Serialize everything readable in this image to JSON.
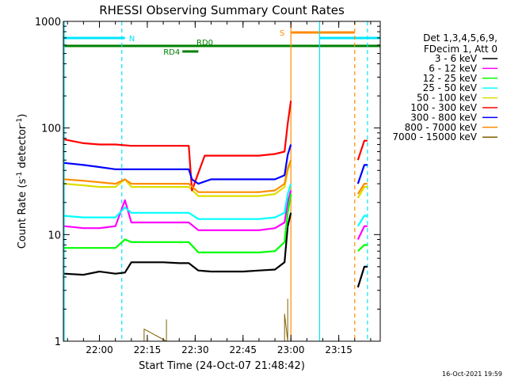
{
  "chart_data": {
    "type": "line",
    "title": "RHESSI Observing Summary Count Rates",
    "xlabel": "Start Time (24-Oct-07 21:48:42)",
    "ylabel": "Count Rate (s-1 detector-1)",
    "ylabel_parts": [
      "Count Rate (s",
      "-1",
      " detector",
      "-1",
      ")"
    ],
    "yscale": "log",
    "xlim": [
      "21:48:42",
      "24-Oct-07 23:28"
    ],
    "ylim": [
      1,
      1000
    ],
    "x_ticks": [
      "22:00",
      "22:15",
      "22:30",
      "22:45",
      "23:00",
      "23:15"
    ],
    "y_ticks": [
      "1",
      "10",
      "100",
      "1000"
    ],
    "legend_header": [
      "Det 1,3,4,5,6,9,",
      "FDecim 1, Att 0"
    ],
    "legend_position": "right",
    "footer_date": "16-Oct-2021 19:59",
    "flags": [
      {
        "label": "N",
        "color": "#00e5ff",
        "x_start": "21:48:42",
        "x_end": "22:08"
      },
      {
        "label": "N",
        "color": "#00e5ff",
        "x_start": "23:09",
        "x_end": "23:28"
      },
      {
        "label": "S",
        "color": "#ff8c00",
        "x_start": "23:00",
        "x_end": "23:20"
      },
      {
        "label": "RD0",
        "color": "#008000",
        "x_start": "21:48:42",
        "x_end": "23:28"
      },
      {
        "label": "RD4",
        "color": "#008000",
        "x_start": "22:26",
        "x_end": "22:31"
      }
    ],
    "vertical_lines": [
      {
        "x": "21:48:42",
        "style": "solid",
        "color": "#00e5ff"
      },
      {
        "x": "22:07",
        "style": "dashed",
        "color": "#00e5ff"
      },
      {
        "x": "23:00",
        "style": "solid",
        "color": "#ff8c00"
      },
      {
        "x": "23:09",
        "style": "solid",
        "color": "#00e5ff"
      },
      {
        "x": "23:20",
        "style": "dashed",
        "color": "#ff8c00"
      },
      {
        "x": "23:24",
        "style": "dashed",
        "color": "#00e5ff"
      }
    ],
    "series": [
      {
        "name": "3 - 6 keV",
        "color": "#000000",
        "x": [
          "21:49",
          "21:55",
          "22:00",
          "22:05",
          "22:08",
          "22:10",
          "22:15",
          "22:20",
          "22:25",
          "22:28",
          "22:31",
          "22:35",
          "22:40",
          "22:45",
          "22:50",
          "22:55",
          "22:58",
          "22:59",
          "23:00",
          "23:21",
          "23:23",
          "23:24"
        ],
        "y": [
          4.3,
          4.2,
          4.5,
          4.3,
          4.4,
          5.5,
          5.5,
          5.5,
          5.4,
          5.4,
          4.6,
          4.5,
          4.5,
          4.5,
          4.6,
          4.7,
          5.5,
          12,
          16,
          3.2,
          5,
          5
        ]
      },
      {
        "name": "6 - 12 keV",
        "color": "#ff00ff",
        "x": [
          "21:49",
          "21:55",
          "22:00",
          "22:05",
          "22:08",
          "22:10",
          "22:15",
          "22:20",
          "22:25",
          "22:28",
          "22:31",
          "22:35",
          "22:40",
          "22:45",
          "22:50",
          "22:55",
          "22:58",
          "22:59",
          "23:00",
          "23:21",
          "23:23",
          "23:24"
        ],
        "y": [
          12,
          11.5,
          11.5,
          12,
          21,
          13,
          13,
          13,
          13,
          13,
          11,
          11,
          11,
          11,
          11,
          11.5,
          13,
          20,
          26,
          9,
          12,
          12
        ]
      },
      {
        "name": "12 - 25 keV",
        "color": "#00ff00",
        "x": [
          "21:49",
          "21:55",
          "22:00",
          "22:05",
          "22:08",
          "22:10",
          "22:15",
          "22:20",
          "22:25",
          "22:28",
          "22:31",
          "22:35",
          "22:40",
          "22:45",
          "22:50",
          "22:55",
          "22:58",
          "22:59",
          "23:00",
          "23:21",
          "23:23",
          "23:24"
        ],
        "y": [
          7.5,
          7.5,
          7.5,
          7.5,
          9,
          8.5,
          8.5,
          8.5,
          8.5,
          8.5,
          6.8,
          6.8,
          6.8,
          6.8,
          6.8,
          7,
          8.5,
          16,
          24,
          7,
          8,
          8
        ]
      },
      {
        "name": "25 - 50 keV",
        "color": "#00ffff",
        "x": [
          "21:49",
          "21:55",
          "22:00",
          "22:05",
          "22:08",
          "22:10",
          "22:15",
          "22:20",
          "22:25",
          "22:28",
          "22:31",
          "22:35",
          "22:40",
          "22:45",
          "22:50",
          "22:55",
          "22:58",
          "22:59",
          "23:00",
          "23:21",
          "23:23",
          "23:24"
        ],
        "y": [
          15,
          14.5,
          14.5,
          14.5,
          18,
          16,
          16,
          16,
          16,
          16,
          14,
          14,
          14,
          14,
          14,
          14.5,
          16,
          24,
          30,
          12,
          15,
          15
        ]
      },
      {
        "name": "50 - 100 keV",
        "color": "#dddd00",
        "x": [
          "21:49",
          "21:55",
          "22:00",
          "22:05",
          "22:08",
          "22:10",
          "22:15",
          "22:20",
          "22:25",
          "22:28",
          "22:31",
          "22:35",
          "22:40",
          "22:45",
          "22:50",
          "22:55",
          "22:58",
          "22:59",
          "23:00",
          "23:21",
          "23:23",
          "23:24"
        ],
        "y": [
          30,
          29,
          28,
          28,
          33,
          28,
          28,
          28,
          28,
          28,
          23,
          23,
          23,
          23,
          23,
          24,
          28,
          40,
          48,
          22,
          28,
          28
        ]
      },
      {
        "name": "100 - 300 keV",
        "color": "#ff0000",
        "x": [
          "21:49",
          "21:55",
          "22:00",
          "22:05",
          "22:10",
          "22:15",
          "22:20",
          "22:25",
          "22:28",
          "22:29",
          "22:33",
          "22:35",
          "22:40",
          "22:45",
          "22:50",
          "22:55",
          "22:58",
          "22:59",
          "23:00",
          "23:21",
          "23:23",
          "23:24"
        ],
        "y": [
          78,
          72,
          70,
          70,
          68,
          68,
          68,
          68,
          68,
          26,
          55,
          55,
          55,
          55,
          55,
          57,
          60,
          110,
          180,
          50,
          76,
          76
        ]
      },
      {
        "name": "300 - 800 keV",
        "color": "#0000ff",
        "x": [
          "21:49",
          "21:55",
          "22:00",
          "22:05",
          "22:10",
          "22:15",
          "22:20",
          "22:25",
          "22:28",
          "22:29",
          "22:31",
          "22:35",
          "22:40",
          "22:45",
          "22:50",
          "22:55",
          "22:58",
          "22:59",
          "23:00",
          "23:21",
          "23:23",
          "23:24"
        ],
        "y": [
          47,
          45,
          43,
          41,
          41,
          41,
          41,
          41,
          41,
          33,
          30,
          33,
          33,
          33,
          33,
          33,
          36,
          56,
          70,
          30,
          45,
          45
        ]
      },
      {
        "name": "800 - 7000 keV",
        "color": "#ff8c00",
        "x": [
          "21:49",
          "21:55",
          "22:00",
          "22:05",
          "22:08",
          "22:10",
          "22:15",
          "22:20",
          "22:25",
          "22:28",
          "22:31",
          "22:35",
          "22:40",
          "22:45",
          "22:50",
          "22:55",
          "22:58",
          "22:59",
          "23:00",
          "23:21",
          "23:23",
          "23:24"
        ],
        "y": [
          33,
          32,
          31,
          30,
          33,
          30,
          30,
          30,
          30,
          30,
          25,
          25,
          25,
          25,
          25,
          26,
          30,
          42,
          50,
          24,
          30,
          30
        ]
      },
      {
        "name": "7000 - 15000 keV",
        "color": "#806000",
        "x": [
          "22:14",
          "22:14",
          "22:21",
          "22:21",
          "22:58",
          "22:58",
          "22:59",
          "22:59"
        ],
        "y": [
          1,
          1.3,
          1,
          1.6,
          1,
          1.8,
          1,
          2.5
        ]
      }
    ]
  }
}
